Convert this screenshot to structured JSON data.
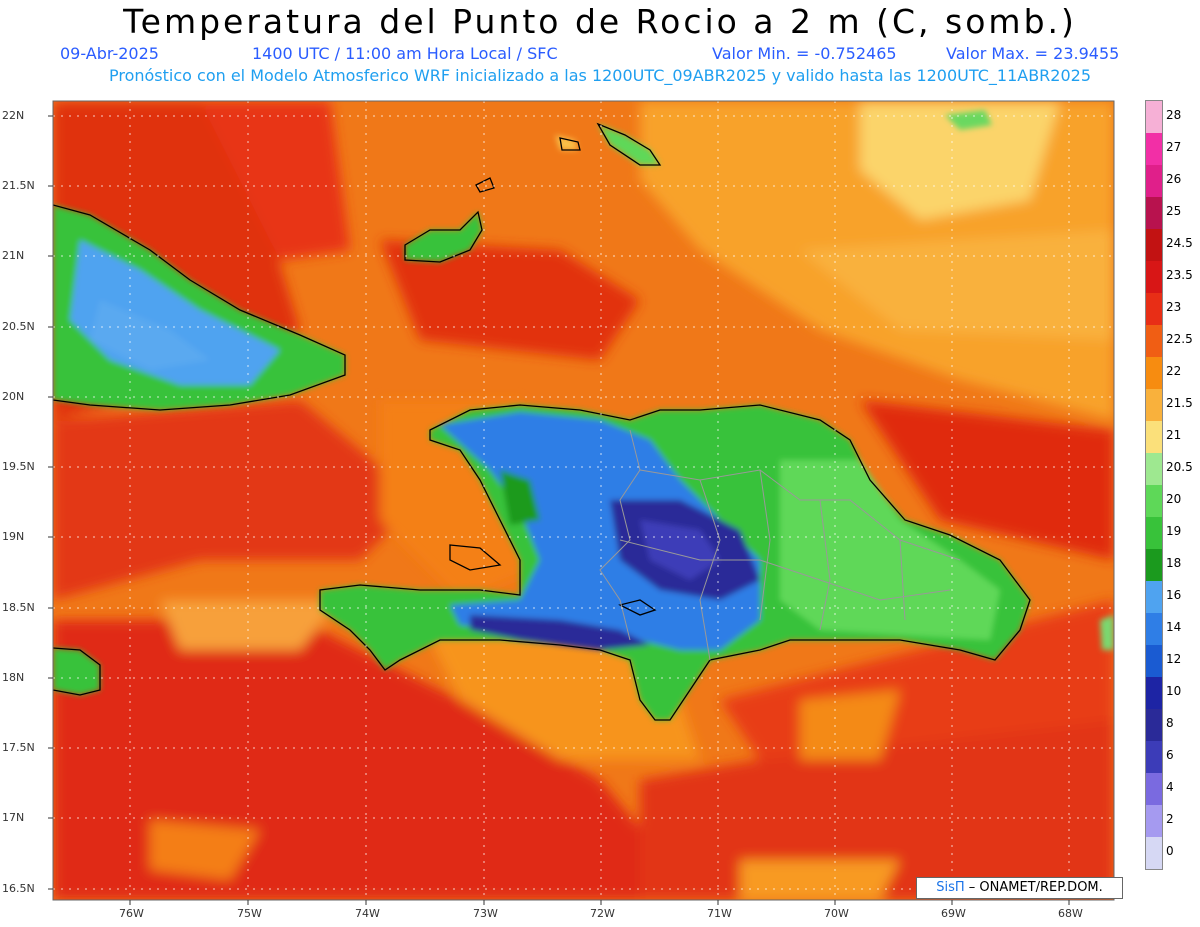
{
  "title": "Temperatura del Punto de Rocio a 2 m (C, somb.)",
  "date": "09-Abr-2025",
  "time": "1400 UTC / 11:00 am Hora Local / SFC",
  "valmin": "Valor Min. = -0.752465",
  "valmax": "Valor Max. = 23.9455",
  "model_line": "Pronóstico con el Modelo Atmosferico WRF inicializado a las 1200UTC_09ABR2025 y valido hasta las  1200UTC_11ABR2025",
  "credit": {
    "sis": "SisΠ",
    "rest": " – ONAMET/REP.DOM."
  },
  "lat_labels": [
    "22N",
    "21.5N",
    "21N",
    "20.5N",
    "20N",
    "19.5N",
    "19N",
    "18.5N",
    "18N",
    "17.5N",
    "17N",
    "16.5N"
  ],
  "lon_labels": [
    "76W",
    "75W",
    "74W",
    "73W",
    "72W",
    "71W",
    "70W",
    "69W",
    "68W"
  ],
  "colorbar": {
    "labels": [
      "28",
      "27",
      "26",
      "25",
      "24.5",
      "23.5",
      "23",
      "22.5",
      "22",
      "21.5",
      "21",
      "20.5",
      "20",
      "19",
      "18",
      "16",
      "14",
      "12",
      "10",
      "8",
      "6",
      "4",
      "2",
      "0"
    ],
    "colors": [
      "#f6b0d6",
      "#f22fa6",
      "#e01f8a",
      "#b8124e",
      "#c21212",
      "#d81616",
      "#e82e16",
      "#f05e14",
      "#f78c10",
      "#f9b13c",
      "#fbe07a",
      "#9ee890",
      "#5ed858",
      "#38c23a",
      "#1b9a1e",
      "#4fa3f0",
      "#2f7ee6",
      "#1a5bd2",
      "#1d24a4",
      "#2a2a98",
      "#3c3cb8",
      "#7a6ae0",
      "#a59af0",
      "#d6d8f4"
    ]
  }
}
